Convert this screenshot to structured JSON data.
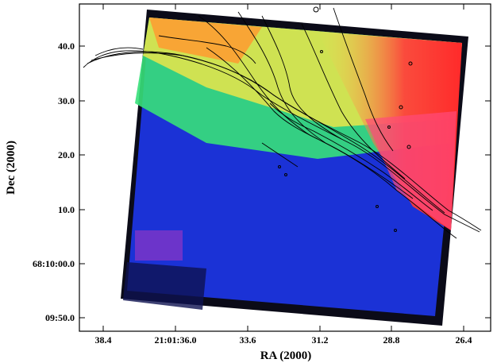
{
  "chart_data": {
    "type": "heatmap",
    "title": "",
    "xlabel": "RA (2000)",
    "ylabel": "Dec (2000)",
    "x_ticks": [
      "38.4",
      "21:01:36.0",
      "33.6",
      "31.2",
      "28.8",
      "26.4"
    ],
    "y_ticks": [
      "09:50.0",
      "68:10:00.0",
      "10.0",
      "20.0",
      "30.0",
      "40.0"
    ],
    "x_direction": "RA decreases to the right",
    "map_description_colors": {
      "low": "#1a2fd8",
      "mid": "#2ee06a",
      "high": "#ff3b3b",
      "edge": "#0a0a1a",
      "contour": "#000000"
    },
    "grid": false,
    "legend": "none",
    "overlay": "contours"
  }
}
